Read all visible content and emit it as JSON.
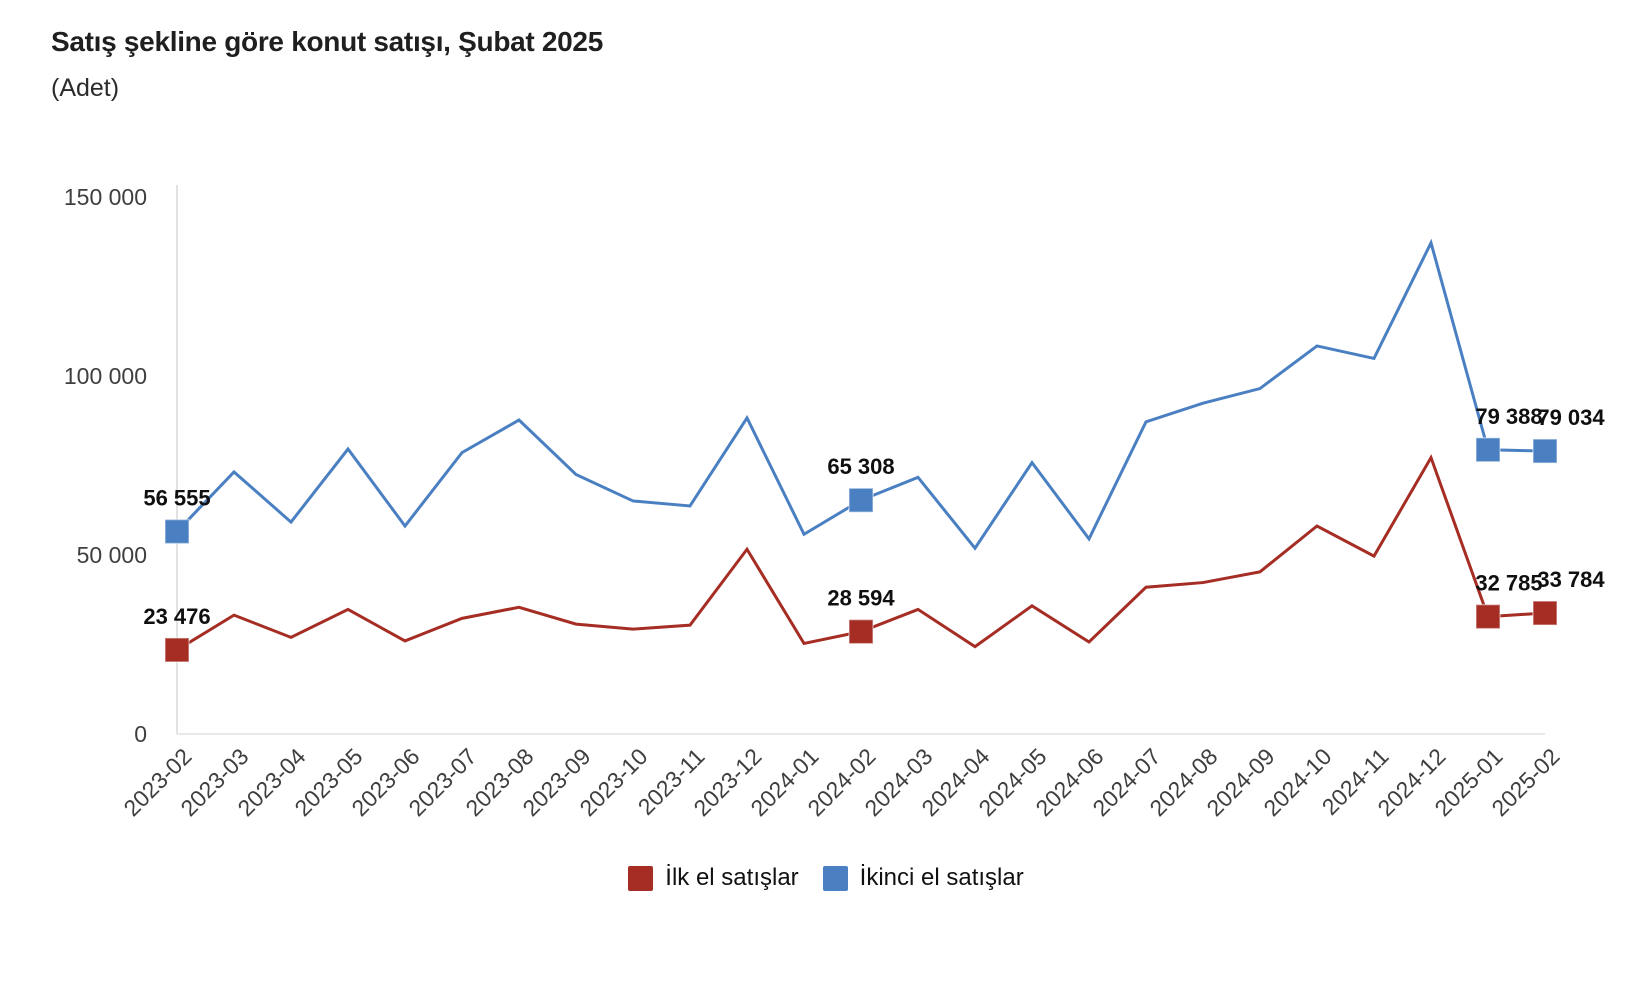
{
  "header": {
    "title": "Satış şekline göre konut satışı, Şubat 2025",
    "subtitle": "(Adet)"
  },
  "chart_data": {
    "type": "line",
    "title": "Satış şekline göre konut satışı, Şubat 2025",
    "unit_label": "(Adet)",
    "grid": false,
    "legend_position": "bottom",
    "categories": [
      "2023-02",
      "2023-03",
      "2023-04",
      "2023-05",
      "2023-06",
      "2023-07",
      "2023-08",
      "2023-09",
      "2023-10",
      "2023-11",
      "2023-12",
      "2024-01",
      "2024-02",
      "2024-03",
      "2024-04",
      "2024-05",
      "2024-06",
      "2024-07",
      "2024-08",
      "2024-09",
      "2024-10",
      "2024-11",
      "2024-12",
      "2025-01",
      "2025-02"
    ],
    "y_axis": {
      "max": 150000,
      "tick_values": [
        0,
        50000,
        100000,
        150000
      ],
      "tick_labels": [
        "0",
        "50 000",
        "100 000",
        "150 000"
      ]
    },
    "series": [
      {
        "name": "İlk el satışlar",
        "color": "#A52D24",
        "values": [
          23476,
          33200,
          27000,
          34800,
          26000,
          32300,
          35400,
          30700,
          29300,
          30400,
          51600,
          25300,
          28594,
          34800,
          24400,
          35800,
          25700,
          41000,
          42300,
          45300,
          58100,
          49700,
          77200,
          32785,
          33784
        ],
        "labeled_points": [
          {
            "index": 0,
            "label": "23 476",
            "dx": 0
          },
          {
            "index": 12,
            "label": "28 594",
            "dx": 0
          },
          {
            "index": 23,
            "label": "32 785",
            "dx": 21
          },
          {
            "index": 24,
            "label": "33 784",
            "dx": 26
          }
        ]
      },
      {
        "name": "İkinci el satışlar",
        "color": "#4A80C2",
        "values": [
          56555,
          73200,
          59200,
          79600,
          58100,
          78600,
          87700,
          72500,
          65100,
          63700,
          88300,
          55800,
          65308,
          71700,
          51900,
          75800,
          54500,
          87200,
          92400,
          96500,
          108400,
          104900,
          137200,
          79388,
          79034
        ],
        "labeled_points": [
          {
            "index": 0,
            "label": "56 555",
            "dx": 0
          },
          {
            "index": 12,
            "label": "65 308",
            "dx": 0
          },
          {
            "index": 23,
            "label": "79 388",
            "dx": 21
          },
          {
            "index": 24,
            "label": "79 034",
            "dx": 26
          }
        ]
      }
    ]
  }
}
